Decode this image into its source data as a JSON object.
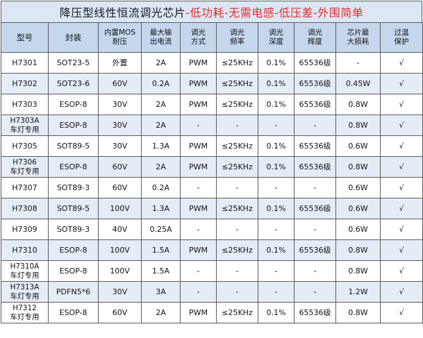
{
  "title": {
    "main": "降压型线性恒流调光芯片",
    "accent": "-低功耗-无需电感-低压差-外围简单"
  },
  "headers": [
    "型号",
    "封装",
    "内置MOS\n耐压",
    "最大输\n出电流",
    "调光\n方式",
    "调光\n频率",
    "调光\n深度",
    "调光\n辉度",
    "芯片最\n大损耗",
    "过温\n保护"
  ],
  "rows": [
    [
      "H7301",
      "SOT23-5",
      "外置",
      "2A",
      "PWM",
      "≤25KHz",
      "0.1%",
      "65536级",
      "-",
      "√"
    ],
    [
      "H7302",
      "SOT23-6",
      "60V",
      "0.2A",
      "PWM",
      "≤25KHz",
      "0.1%",
      "65536级",
      "0.45W",
      "√"
    ],
    [
      "H7303",
      "ESOP-8",
      "30V",
      "2A",
      "PWM",
      "≤25KHz",
      "0.1%",
      "65536级",
      "0.8W",
      "√"
    ],
    [
      "H7303A\n车灯专用",
      "ESOP-8",
      "30V",
      "2A",
      "-",
      "-",
      "-",
      "-",
      "0.8W",
      "√"
    ],
    [
      "H7305",
      "SOT89-5",
      "30V",
      "1.3A",
      "PWM",
      "≤25KHz",
      "0.1%",
      "65536级",
      "0.6W",
      "√"
    ],
    [
      "H7306\n车灯专用",
      "ESOP-8",
      "60V",
      "2A",
      "PWM",
      "≤25KHz",
      "0.1%",
      "65536级",
      "0.8W",
      "√"
    ],
    [
      "H7307",
      "SOT89-3",
      "60V",
      "0.2A",
      "-",
      "-",
      "-",
      "-",
      "0.6W",
      "√"
    ],
    [
      "H7308",
      "SOT89-5",
      "100V",
      "1.3A",
      "PWM",
      "≤25KHz",
      "0.1%",
      "65536级",
      "0.6W",
      "√"
    ],
    [
      "H7309",
      "SOT89-3",
      "40V",
      "0.25A",
      "-",
      "-",
      "-",
      "-",
      "0.6W",
      "√"
    ],
    [
      "H7310",
      "ESOP-8",
      "100V",
      "1.5A",
      "PWM",
      "≤25KHz",
      "0.1%",
      "65536级",
      "0.8W",
      "√"
    ],
    [
      "H7310A\n车灯专用",
      "ESOP-8",
      "100V",
      "1.5A",
      "-",
      "-",
      "-",
      "-",
      "0.8W",
      "√"
    ],
    [
      "H7313A\n车灯专用",
      "PDFN5*6",
      "30V",
      "3A",
      "-",
      "-",
      "-",
      "-",
      "1.2W",
      "√"
    ],
    [
      "H7312\n车灯专用",
      "ESOP-8",
      "60V",
      "2A",
      "PWM",
      "≤25KHz",
      "0.1%",
      "65536级",
      "0.8W",
      "√"
    ]
  ]
}
